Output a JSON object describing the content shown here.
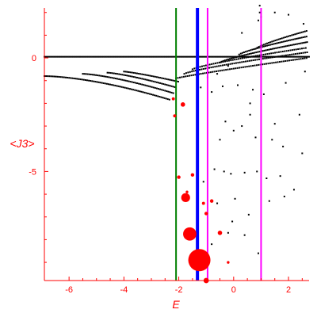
{
  "chart_data": {
    "type": "scatter",
    "title": "",
    "xlabel": "E",
    "ylabel": "<J3>",
    "xlim": [
      -6.9,
      2.75
    ],
    "ylim": [
      -9.8,
      2.2
    ],
    "x_ticks": [
      -6,
      -4,
      -2,
      0,
      2
    ],
    "y_ticks": [
      0,
      -5
    ],
    "grid": false,
    "axis_color": "#ff0000",
    "point_color": "#000000",
    "highlight_color": "#ff0000",
    "vertical_lines": [
      {
        "x": -2.1,
        "color": "#008000",
        "style": "thin"
      },
      {
        "x": -1.32,
        "color": "#0000ff",
        "style": "thick"
      },
      {
        "x": -0.95,
        "color": "#ff00ff",
        "style": "thin"
      },
      {
        "x": 1.0,
        "color": "#ff00ff",
        "style": "thin"
      }
    ],
    "highlighted_points": [
      {
        "x": -1.25,
        "y": -8.9,
        "size": 5
      },
      {
        "x": -1.6,
        "y": -7.75,
        "size": 3
      },
      {
        "x": -1.75,
        "y": -6.15,
        "size": 2
      },
      {
        "x": -1.0,
        "y": -9.8,
        "size": 1.2
      },
      {
        "x": -0.5,
        "y": -7.7,
        "size": 1
      },
      {
        "x": -1.85,
        "y": -2.05,
        "size": 1
      },
      {
        "x": -2.0,
        "y": -5.25,
        "size": 0.8
      },
      {
        "x": -1.5,
        "y": -5.15,
        "size": 0.8
      },
      {
        "x": -0.8,
        "y": -6.3,
        "size": 0.8
      },
      {
        "x": -1.0,
        "y": -6.85,
        "size": 0.8
      },
      {
        "x": -2.15,
        "y": -2.55,
        "size": 0.7
      },
      {
        "x": -2.2,
        "y": -1.8,
        "size": 0.7
      },
      {
        "x": -1.1,
        "y": -6.4,
        "size": 0.7
      },
      {
        "x": -0.2,
        "y": -9.0,
        "size": 0.6
      },
      {
        "x": -1.7,
        "y": -5.9,
        "size": 0.6
      }
    ],
    "dot_points": [
      [
        -1.2,
        -1.3
      ],
      [
        -0.8,
        -1.5
      ],
      [
        -0.3,
        -2.8
      ],
      [
        0.0,
        -3.2
      ],
      [
        -0.5,
        -3.6
      ],
      [
        0.3,
        -3.0
      ],
      [
        0.6,
        -2.0
      ],
      [
        0.8,
        -3.5
      ],
      [
        1.4,
        -3.6
      ],
      [
        2.5,
        -4.2
      ],
      [
        1.8,
        -3.9
      ],
      [
        -0.7,
        -4.9
      ],
      [
        -0.35,
        -5.0
      ],
      [
        -0.1,
        -5.1
      ],
      [
        0.4,
        -5.05
      ],
      [
        0.85,
        -5.0
      ],
      [
        1.2,
        -5.3
      ],
      [
        1.7,
        -5.2
      ],
      [
        -1.1,
        -5.45
      ],
      [
        0.05,
        -6.2
      ],
      [
        -0.6,
        -6.4
      ],
      [
        0.55,
        -6.9
      ],
      [
        1.3,
        -6.3
      ],
      [
        1.85,
        -6.1
      ],
      [
        -0.2,
        -7.7
      ],
      [
        0.4,
        -7.8
      ],
      [
        -0.8,
        -8.2
      ],
      [
        0.9,
        -8.6
      ],
      [
        -0.05,
        -7.2
      ],
      [
        2.2,
        -5.8
      ],
      [
        2.4,
        -2.5
      ],
      [
        0.15,
        -1.2
      ],
      [
        -0.4,
        -1.25
      ],
      [
        0.7,
        -1.4
      ],
      [
        1.1,
        -1.6
      ],
      [
        0.9,
        1.65
      ],
      [
        1.0,
        1.8
      ],
      [
        0.95,
        2.3
      ],
      [
        0.95,
        2.0
      ],
      [
        1.5,
        2.0
      ],
      [
        2.0,
        1.9
      ],
      [
        0.6,
        -2.5
      ],
      [
        1.5,
        -2.9
      ],
      [
        -0.95,
        -0.85
      ],
      [
        -0.2,
        -0.35
      ],
      [
        -0.6,
        -0.7
      ],
      [
        2.55,
        1.5
      ],
      [
        0.3,
        1.1
      ],
      [
        1.9,
        -1.1
      ],
      [
        2.6,
        -0.6
      ]
    ],
    "curve_dots": [
      {
        "x_start": -6.9,
        "x_end": -2.3,
        "step": 0.06,
        "y_at_start": -0.8,
        "y_at_end": -1.85,
        "shape": 1.6
      },
      {
        "x_start": -5.5,
        "x_end": -2.2,
        "step": 0.06,
        "y_at_start": -0.7,
        "y_at_end": -1.55,
        "shape": 1.4
      },
      {
        "x_start": -4.6,
        "x_end": -2.1,
        "step": 0.06,
        "y_at_start": -0.65,
        "y_at_end": -1.3,
        "shape": 1.3
      },
      {
        "x_start": -4.0,
        "x_end": -2.0,
        "step": 0.06,
        "y_at_start": -0.6,
        "y_at_end": -1.05,
        "shape": 1.2
      },
      {
        "x_start": -6.9,
        "x_end": 2.75,
        "step": 0.05,
        "y_at_start": 0.05,
        "y_at_end": 0.05,
        "shape": 1.0
      },
      {
        "x_start": -2.1,
        "x_end": 2.7,
        "step": 0.07,
        "y_at_start": -0.9,
        "y_at_end": 0.0,
        "shape": 0.9
      },
      {
        "x_start": -1.8,
        "x_end": 2.7,
        "step": 0.07,
        "y_at_start": -0.7,
        "y_at_end": 0.25,
        "shape": 0.8
      },
      {
        "x_start": -1.5,
        "x_end": 2.7,
        "step": 0.07,
        "y_at_start": -0.5,
        "y_at_end": 0.45,
        "shape": 0.8
      },
      {
        "x_start": -0.5,
        "x_end": 2.7,
        "step": 0.06,
        "y_at_start": -0.2,
        "y_at_end": 0.7,
        "shape": 0.8
      },
      {
        "x_start": 0.2,
        "x_end": 2.7,
        "step": 0.06,
        "y_at_start": 0.15,
        "y_at_end": 0.95,
        "shape": 0.8
      },
      {
        "x_start": 0.8,
        "x_end": 2.7,
        "step": 0.06,
        "y_at_start": 0.4,
        "y_at_end": 1.2,
        "shape": 0.8
      }
    ]
  }
}
